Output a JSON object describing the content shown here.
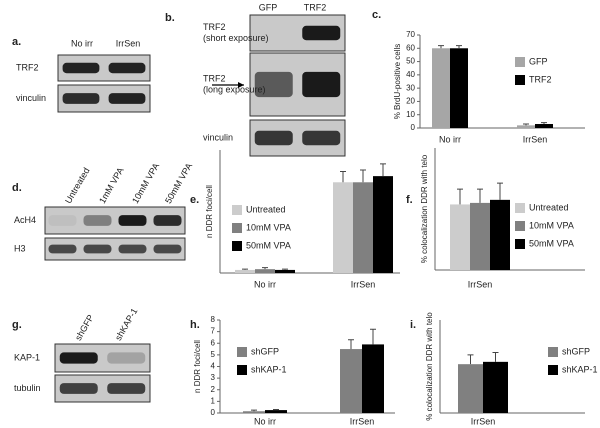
{
  "blots": [
    {
      "label": "a.",
      "columns": [
        "No irr",
        "IrrSen"
      ],
      "rows": [
        [
          "TRF2"
        ],
        [
          "vinculin"
        ]
      ]
    },
    {
      "label": "b.",
      "columns": [
        "GFP",
        "TRF2"
      ],
      "rows": [
        [
          "TRF2",
          "(short exposure)"
        ],
        [
          "TRF2",
          "(long exposure)"
        ],
        [
          "vinculin"
        ]
      ]
    },
    {
      "label": "d.",
      "columns": [
        "Untreated",
        "1mM VPA",
        "10mM VPA",
        "50mM VPA"
      ],
      "rows": [
        [
          "AcH4"
        ],
        [
          "H3"
        ]
      ]
    },
    {
      "label": "g.",
      "columns": [
        "shGFP",
        "shKAP-1"
      ],
      "rows": [
        [
          "KAP-1"
        ],
        [
          "tubulin"
        ]
      ]
    }
  ],
  "chart_data": [
    {
      "type": "bar",
      "label": "c.",
      "y_label": "% BrdU-positive cells",
      "categories": [
        "No irr",
        "IrrSen"
      ],
      "series": [
        {
          "name": "GFP",
          "color": "#a6a6a6",
          "values": [
            60,
            2
          ],
          "errors": [
            2,
            1
          ]
        },
        {
          "name": "TRF2",
          "color": "#000000",
          "values": [
            60,
            3
          ],
          "errors": [
            2,
            1
          ]
        }
      ],
      "ylim": [
        0,
        70
      ],
      "yticks": [
        0,
        10,
        20,
        30,
        40,
        50,
        60,
        70
      ]
    },
    {
      "type": "bar",
      "label": "e.",
      "y_label": "n DDR foci/cell",
      "categories": [
        "No irr",
        "IrrSen"
      ],
      "series": [
        {
          "name": "Untreated",
          "color": "#cccccc",
          "values": [
            0.2,
            5.9
          ],
          "errors": [
            0.05,
            0.7
          ]
        },
        {
          "name": "10mM VPA",
          "color": "#808080",
          "values": [
            0.25,
            5.9
          ],
          "errors": [
            0.1,
            0.8
          ]
        },
        {
          "name": "50mM VPA",
          "color": "#000000",
          "values": [
            0.2,
            6.3
          ],
          "errors": [
            0.05,
            0.8
          ]
        }
      ],
      "ylim": [
        0,
        8
      ]
    },
    {
      "type": "bar",
      "label": "f.",
      "y_label": "% colocalization DDR with telo",
      "categories": [
        "IrrSen"
      ],
      "series": [
        {
          "name": "Untreated",
          "color": "#cccccc",
          "values": [
            21.5
          ],
          "errors": [
            5
          ]
        },
        {
          "name": "10mM VPA",
          "color": "#808080",
          "values": [
            22
          ],
          "errors": [
            4.5
          ]
        },
        {
          "name": "50mM VPA",
          "color": "#000000",
          "values": [
            23
          ],
          "errors": [
            5.5
          ]
        }
      ],
      "ylim": [
        0,
        40
      ]
    },
    {
      "type": "bar",
      "label": "h.",
      "y_label": "n DDR foci/cell",
      "categories": [
        "No irr",
        "IrrSen"
      ],
      "series": [
        {
          "name": "shGFP",
          "color": "#808080",
          "values": [
            0.15,
            5.5
          ],
          "errors": [
            0.1,
            0.8
          ]
        },
        {
          "name": "shKAP-1",
          "color": "#000000",
          "values": [
            0.25,
            5.9
          ],
          "errors": [
            0.05,
            1.3
          ]
        }
      ],
      "ylim": [
        0,
        8
      ],
      "yticks": [
        0,
        1,
        2,
        3,
        4,
        5,
        6,
        7,
        8
      ]
    },
    {
      "type": "bar",
      "label": "i.",
      "y_label": "% colocalization DDR with telo",
      "categories": [
        "IrrSen"
      ],
      "series": [
        {
          "name": "shGFP",
          "color": "#808080",
          "values": [
            21
          ],
          "errors": [
            4
          ]
        },
        {
          "name": "shKAP-1",
          "color": "#000000",
          "values": [
            22
          ],
          "errors": [
            4
          ]
        }
      ],
      "ylim": [
        0,
        40
      ]
    }
  ]
}
